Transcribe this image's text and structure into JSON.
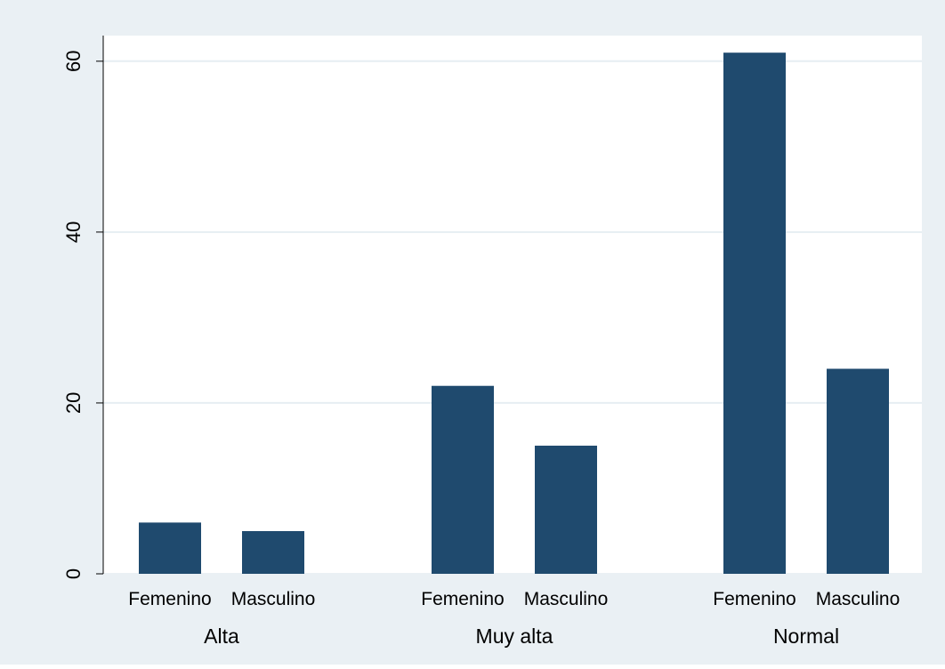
{
  "chart_data": {
    "type": "bar",
    "title": "",
    "xlabel": "",
    "ylabel": "",
    "ylim": [
      0,
      63
    ],
    "yticks": [
      0,
      20,
      40,
      60
    ],
    "grid": true,
    "bar_color": "#1f4a6e",
    "background_color": "#eaf0f4",
    "plot_background": "#ffffff",
    "groups": [
      {
        "label": "Alta",
        "categories": [
          "Femenino",
          "Masculino"
        ],
        "values": [
          6,
          5
        ]
      },
      {
        "label": "Muy alta",
        "categories": [
          "Femenino",
          "Masculino"
        ],
        "values": [
          22,
          15
        ]
      },
      {
        "label": "Normal",
        "categories": [
          "Femenino",
          "Masculino"
        ],
        "values": [
          61,
          24
        ]
      }
    ]
  }
}
